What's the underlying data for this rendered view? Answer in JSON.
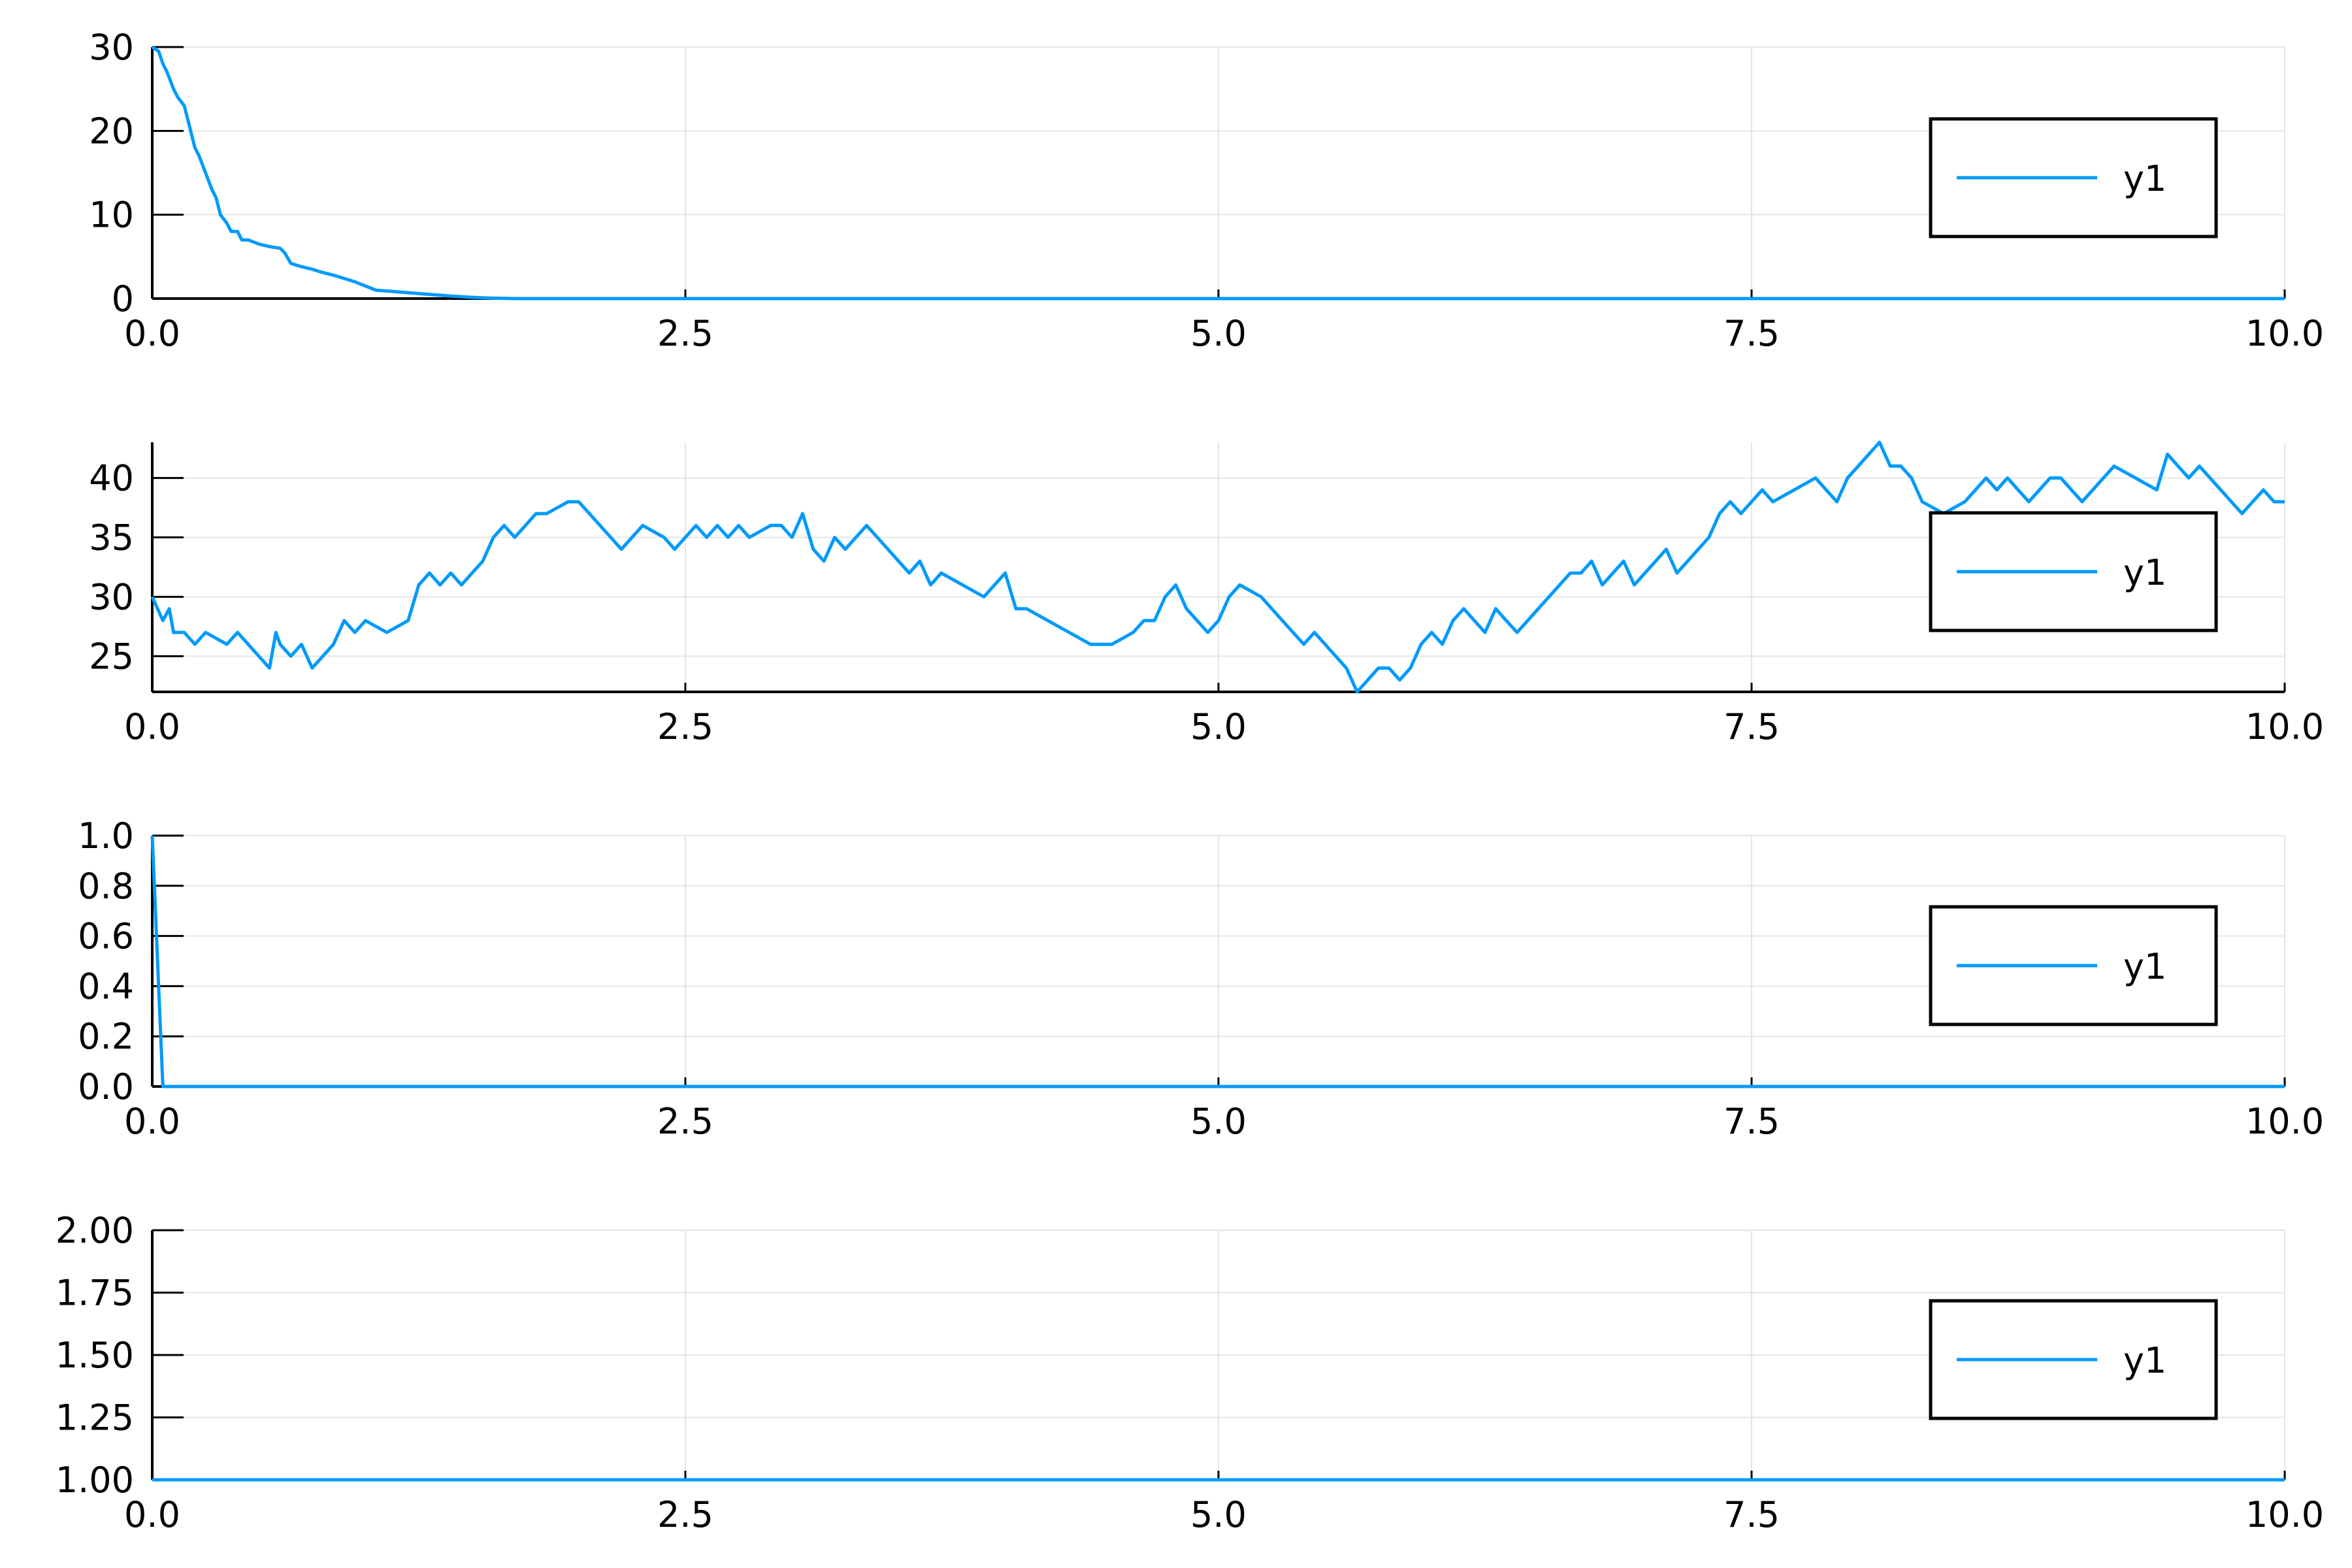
{
  "colors": {
    "series": "#009AFA",
    "grid": "#E5E5E5",
    "axis": "#000000",
    "background": "#FFFFFF"
  },
  "chart_data": [
    {
      "type": "line",
      "xlim": [
        0,
        10
      ],
      "ylim": [
        0,
        30
      ],
      "x_ticks": [
        "0.0",
        "2.5",
        "5.0",
        "7.5",
        "10.0"
      ],
      "x_tick_values": [
        0,
        2.5,
        5,
        7.5,
        10
      ],
      "y_ticks": [
        "0",
        "10",
        "20",
        "30"
      ],
      "y_tick_values": [
        0,
        10,
        20,
        30
      ],
      "grid": true,
      "legend_position": "right",
      "series": [
        {
          "name": "y1",
          "x": [
            0,
            0.03,
            0.05,
            0.07,
            0.1,
            0.12,
            0.15,
            0.18,
            0.2,
            0.22,
            0.25,
            0.28,
            0.3,
            0.32,
            0.35,
            0.37,
            0.4,
            0.42,
            0.45,
            0.5,
            0.55,
            0.6,
            0.62,
            0.65,
            0.7,
            0.75,
            0.8,
            0.85,
            0.9,
            0.95,
            1.0,
            1.05,
            1.1,
            1.2,
            1.3,
            1.4,
            1.5,
            1.6,
            1.7,
            2.0,
            10
          ],
          "values": [
            30,
            29.5,
            28,
            27,
            25,
            24,
            23,
            20,
            18,
            17,
            15,
            13,
            12,
            10,
            9,
            8,
            8,
            7,
            7,
            6.5,
            6.2,
            6,
            5.5,
            4.2,
            3.8,
            3.5,
            3.1,
            2.8,
            2.4,
            2.0,
            1.5,
            1.0,
            0.9,
            0.7,
            0.5,
            0.3,
            0.15,
            0.05,
            0,
            0,
            0
          ]
        }
      ]
    },
    {
      "type": "line",
      "xlim": [
        0,
        10
      ],
      "ylim": [
        22,
        43
      ],
      "x_ticks": [
        "0.0",
        "2.5",
        "5.0",
        "7.5",
        "10.0"
      ],
      "x_tick_values": [
        0,
        2.5,
        5,
        7.5,
        10
      ],
      "y_ticks": [
        "25",
        "30",
        "35",
        "40"
      ],
      "y_tick_values": [
        25,
        30,
        35,
        40
      ],
      "grid": true,
      "legend_position": "right",
      "series": [
        {
          "name": "y1",
          "x": [
            0,
            0.05,
            0.08,
            0.1,
            0.15,
            0.2,
            0.25,
            0.3,
            0.35,
            0.4,
            0.45,
            0.5,
            0.55,
            0.58,
            0.6,
            0.65,
            0.7,
            0.75,
            0.8,
            0.85,
            0.9,
            0.95,
            1.0,
            1.1,
            1.2,
            1.25,
            1.3,
            1.35,
            1.4,
            1.45,
            1.5,
            1.55,
            1.6,
            1.65,
            1.7,
            1.75,
            1.8,
            1.85,
            1.9,
            1.95,
            2.0,
            2.05,
            2.1,
            2.15,
            2.2,
            2.3,
            2.4,
            2.45,
            2.5,
            2.55,
            2.6,
            2.65,
            2.7,
            2.75,
            2.8,
            2.9,
            2.95,
            3.0,
            3.05,
            3.1,
            3.15,
            3.2,
            3.25,
            3.3,
            3.35,
            3.4,
            3.45,
            3.5,
            3.55,
            3.6,
            3.65,
            3.7,
            3.8,
            3.9,
            4.0,
            4.05,
            4.1,
            4.2,
            4.3,
            4.4,
            4.5,
            4.6,
            4.65,
            4.7,
            4.75,
            4.8,
            4.85,
            4.9,
            4.95,
            5.0,
            5.05,
            5.1,
            5.2,
            5.25,
            5.3,
            5.35,
            5.4,
            5.45,
            5.5,
            5.55,
            5.6,
            5.65,
            5.7,
            5.75,
            5.8,
            5.85,
            5.9,
            5.95,
            6.0,
            6.05,
            6.1,
            6.15,
            6.2,
            6.25,
            6.3,
            6.35,
            6.4,
            6.45,
            6.5,
            6.55,
            6.6,
            6.65,
            6.7,
            6.75,
            6.8,
            6.85,
            6.9,
            6.95,
            7.0,
            7.05,
            7.1,
            7.15,
            7.2,
            7.25,
            7.3,
            7.35,
            7.4,
            7.45,
            7.5,
            7.55,
            7.6,
            7.7,
            7.8,
            7.85,
            7.9,
            7.95,
            8.0,
            8.05,
            8.1,
            8.15,
            8.2,
            8.25,
            8.3,
            8.4,
            8.5,
            8.55,
            8.6,
            8.65,
            8.7,
            8.75,
            8.8,
            8.85,
            8.9,
            8.95,
            9.0,
            9.05,
            9.1,
            9.15,
            9.2,
            9.3,
            9.4,
            9.45,
            9.5,
            9.55,
            9.6,
            9.65,
            9.7,
            9.75,
            9.8,
            9.85,
            9.9,
            9.95,
            10.0
          ],
          "values": [
            30,
            28,
            29,
            27,
            27,
            26,
            27,
            26.5,
            26,
            27,
            26,
            25,
            24,
            27,
            26,
            25,
            26,
            24,
            25,
            26,
            28,
            27,
            28,
            27,
            28,
            31,
            32,
            31,
            32,
            31,
            32,
            33,
            35,
            36,
            35,
            36,
            37,
            37,
            37.5,
            38,
            38,
            37,
            36,
            35,
            34,
            36,
            35,
            34,
            35,
            36,
            35,
            36,
            35,
            36,
            35,
            36,
            36,
            35,
            37,
            34,
            33,
            35,
            34,
            35,
            36,
            35,
            34,
            33,
            32,
            33,
            31,
            32,
            31,
            30,
            32,
            29,
            29,
            28,
            27,
            26,
            26,
            27,
            28,
            28,
            30,
            31,
            29,
            28,
            27,
            28,
            30,
            31,
            30,
            29,
            28,
            27,
            26,
            27,
            26,
            25,
            24,
            22,
            23,
            24,
            24,
            23,
            24,
            26,
            27,
            26,
            28,
            29,
            28,
            27,
            29,
            28,
            27,
            28,
            29,
            30,
            31,
            32,
            32,
            33,
            31,
            32,
            33,
            31,
            32,
            33,
            34,
            32,
            33,
            34,
            35,
            37,
            38,
            37,
            38,
            39,
            38,
            39,
            40,
            39,
            38,
            40,
            41,
            42,
            43,
            41,
            41,
            40,
            38,
            37,
            38,
            39,
            40,
            39,
            40,
            39,
            38,
            39,
            40,
            40,
            39,
            38,
            39,
            40,
            41,
            40,
            39,
            42,
            41,
            40,
            41,
            40,
            39,
            38,
            37,
            38,
            39,
            38,
            38
          ]
        }
      ]
    },
    {
      "type": "line",
      "xlim": [
        0,
        10
      ],
      "ylim": [
        0,
        1
      ],
      "x_ticks": [
        "0.0",
        "2.5",
        "5.0",
        "7.5",
        "10.0"
      ],
      "x_tick_values": [
        0,
        2.5,
        5,
        7.5,
        10
      ],
      "y_ticks": [
        "0.0",
        "0.2",
        "0.4",
        "0.6",
        "0.8",
        "1.0"
      ],
      "y_tick_values": [
        0,
        0.2,
        0.4,
        0.6,
        0.8,
        1.0
      ],
      "grid": true,
      "legend_position": "right",
      "series": [
        {
          "name": "y1",
          "x": [
            0,
            0.05,
            10
          ],
          "values": [
            1,
            0,
            0
          ]
        }
      ]
    },
    {
      "type": "line",
      "xlim": [
        0,
        10
      ],
      "ylim": [
        1,
        2
      ],
      "x_ticks": [
        "0.0",
        "2.5",
        "5.0",
        "7.5",
        "10.0"
      ],
      "x_tick_values": [
        0,
        2.5,
        5,
        7.5,
        10
      ],
      "y_ticks": [
        "1.00",
        "1.25",
        "1.50",
        "1.75",
        "2.00"
      ],
      "y_tick_values": [
        1.0,
        1.25,
        1.5,
        1.75,
        2.0
      ],
      "grid": true,
      "legend_position": "right",
      "series": [
        {
          "name": "y1",
          "x": [
            0,
            10
          ],
          "values": [
            1,
            1
          ]
        }
      ]
    }
  ]
}
